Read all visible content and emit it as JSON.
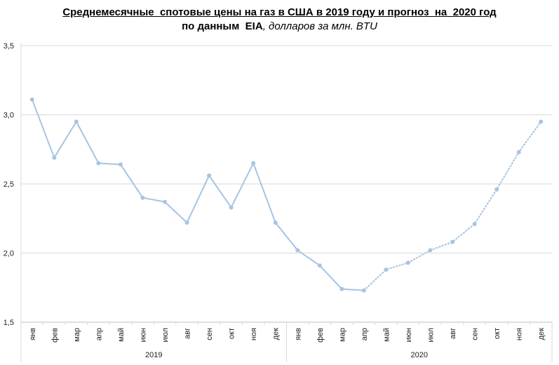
{
  "title": {
    "line1": "Среднемесячные  спотовые цены на газ в США в 2019 году и прогноз  на  2020 год",
    "line2_bold": "по данным  EIA",
    "line2_italic": ", долларов за млн. BTU"
  },
  "chart_data": {
    "type": "line",
    "title": "Среднемесячные  спотовые цены на газ в США в 2019 году и прогноз  на  2020 год по данным  EIA, долларов за млн. BTU",
    "categories": [
      "янв",
      "фев",
      "мар",
      "апр",
      "май",
      "июн",
      "июл",
      "авг",
      "сен",
      "окт",
      "ноя",
      "дек",
      "янв",
      "фев",
      "мар",
      "апр",
      "май",
      "июн",
      "июл",
      "авг",
      "сен",
      "окт",
      "ноя",
      "дек"
    ],
    "groups": [
      {
        "label": "2019",
        "start": 0,
        "end": 11
      },
      {
        "label": "2020",
        "start": 12,
        "end": 23
      }
    ],
    "values": [
      3.11,
      2.69,
      2.95,
      2.65,
      2.64,
      2.4,
      2.37,
      2.22,
      2.56,
      2.33,
      2.65,
      2.22,
      2.02,
      1.91,
      1.74,
      1.73,
      1.88,
      1.93,
      2.02,
      2.08,
      2.21,
      2.46,
      2.73,
      2.95
    ],
    "actual_last_index": 15,
    "ylim": [
      1.5,
      3.5
    ],
    "yticks": [
      "1,5",
      "2,0",
      "2,5",
      "3,0",
      "3,5"
    ],
    "ytick_values": [
      1.5,
      2.0,
      2.5,
      3.0,
      3.5
    ],
    "grid": true,
    "line_color": "#a7c4e2",
    "marker_color": "#a7c4e2",
    "actual_style": "solid",
    "forecast_style": "dotted"
  }
}
